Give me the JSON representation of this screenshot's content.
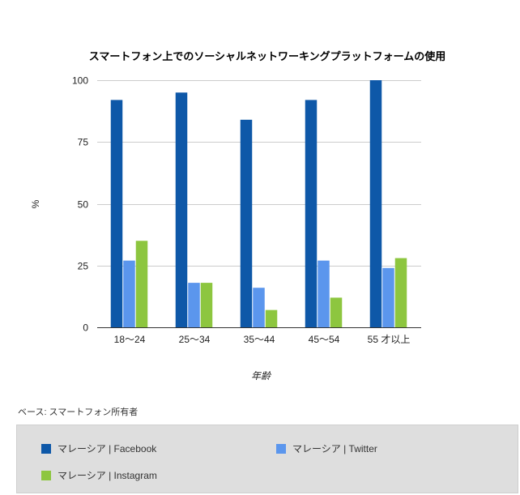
{
  "chart_data": {
    "type": "bar",
    "title": "スマートフォン上でのソーシャルネットワーキングプラットフォームの使用",
    "xlabel": "年齢",
    "ylabel": "%",
    "ylim": [
      0,
      100
    ],
    "yticks": [
      "0",
      "25",
      "50",
      "75",
      "100"
    ],
    "categories": [
      "18～24",
      "25～34",
      "35～44",
      "45～54",
      "55 才以上"
    ],
    "series": [
      {
        "name": "マレーシア | Facebook",
        "color": "#0e58a8",
        "values": [
          92,
          95,
          84,
          92,
          100
        ]
      },
      {
        "name": "マレーシア | Twitter",
        "color": "#5b96ed",
        "values": [
          27,
          18,
          16,
          27,
          24
        ]
      },
      {
        "name": "マレーシア | Instagram",
        "color": "#8dc63f",
        "values": [
          35,
          18,
          7,
          12,
          28
        ]
      }
    ],
    "grid": true,
    "legend": "bottom"
  },
  "base_note": "ベース: スマートフォン所有者"
}
